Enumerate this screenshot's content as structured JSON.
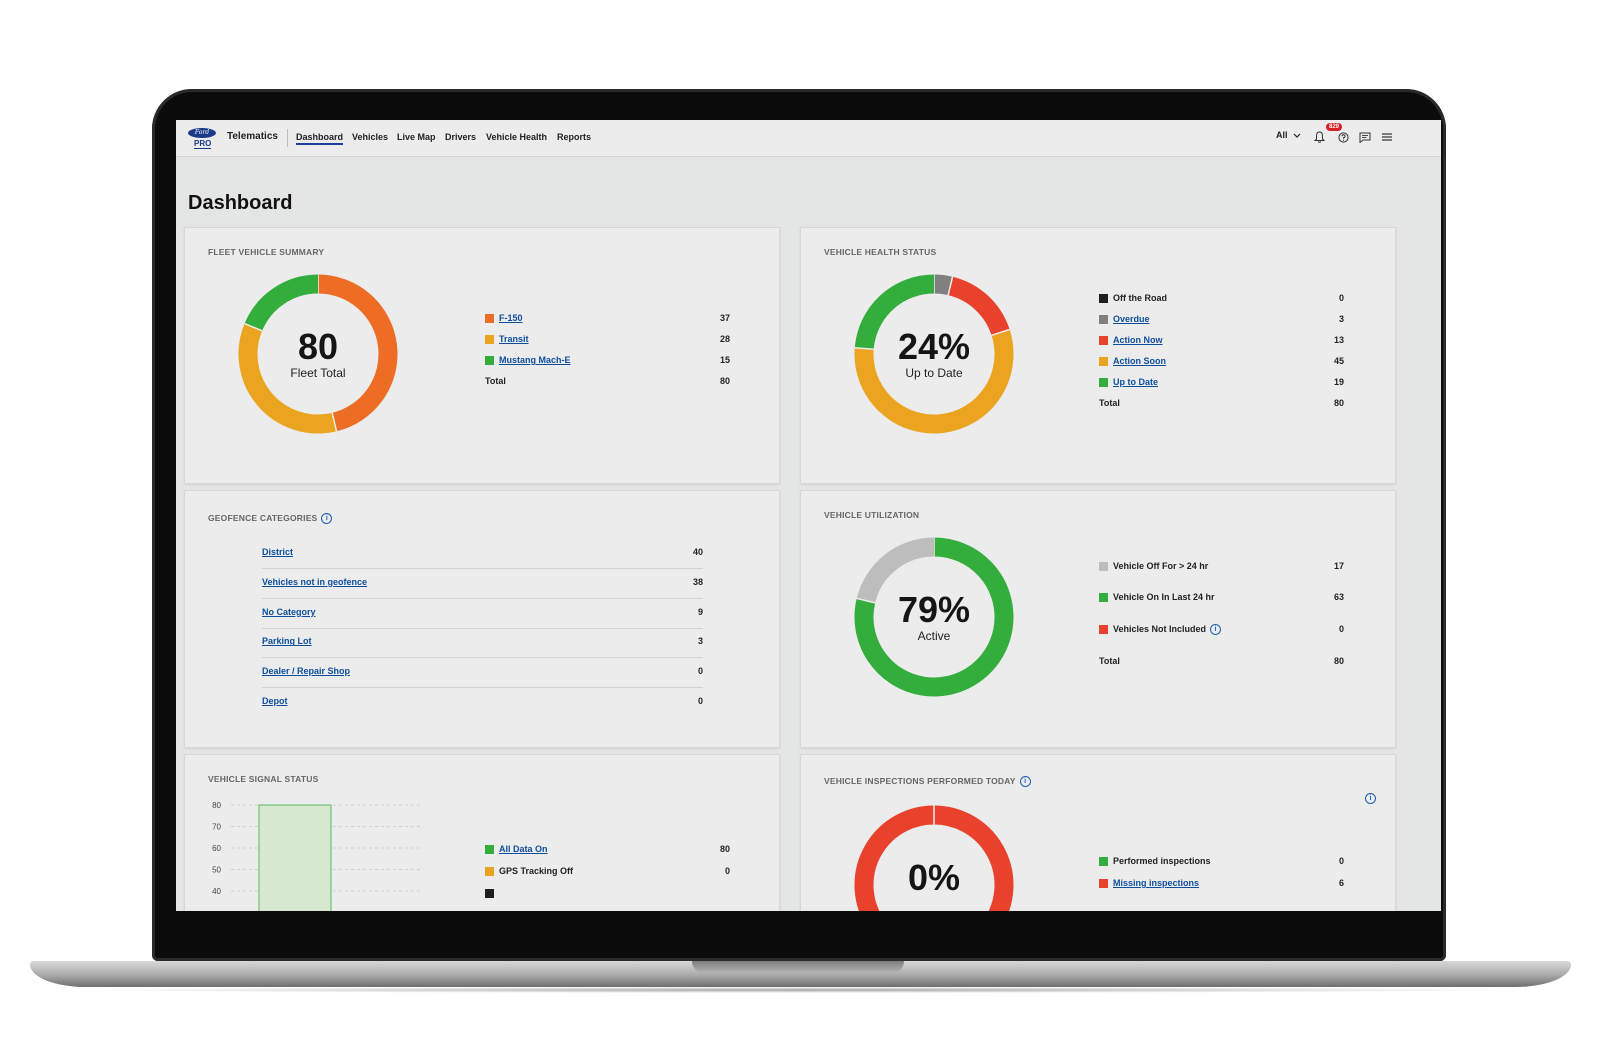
{
  "nav": {
    "app_name": "Telematics",
    "logo_oval_text": "Ford",
    "logo_pro_text": "PRO",
    "items": [
      {
        "label": "Dashboard"
      },
      {
        "label": "Vehicles"
      },
      {
        "label": "Live Map"
      },
      {
        "label": "Drivers"
      },
      {
        "label": "Vehicle Health"
      },
      {
        "label": "Reports"
      }
    ],
    "filter_label": "All",
    "notification_count": "829",
    "icons": [
      "chevron-down-icon",
      "bell-icon",
      "help-icon",
      "chat-icon",
      "menu-icon"
    ]
  },
  "page_title": "Dashboard",
  "fleet_summary": {
    "title": "FLEET VEHICLE SUMMARY",
    "center_value": "80",
    "center_label": "Fleet Total",
    "rows": [
      {
        "label": "F-150",
        "value": "37",
        "color": "#ec6d23",
        "link": true
      },
      {
        "label": "Transit",
        "value": "28",
        "color": "#eaa41f",
        "link": true
      },
      {
        "label": "Mustang Mach-E",
        "value": "15",
        "color": "#33ad3b",
        "link": true
      }
    ],
    "total_label": "Total",
    "total_value": "80"
  },
  "health_status": {
    "title": "VEHICLE HEALTH STATUS",
    "center_value": "24%",
    "center_label": "Up to Date",
    "rows": [
      {
        "label": "Off the Road",
        "value": "0",
        "color": "#1f1f1f",
        "link": false
      },
      {
        "label": "Overdue",
        "value": "3",
        "color": "#808080",
        "link": true
      },
      {
        "label": "Action Now",
        "value": "13",
        "color": "#e8412c",
        "link": true
      },
      {
        "label": "Action Soon",
        "value": "45",
        "color": "#eaa41f",
        "link": true
      },
      {
        "label": "Up to Date",
        "value": "19",
        "color": "#33ad3b",
        "link": true
      }
    ],
    "total_label": "Total",
    "total_value": "80"
  },
  "geofence": {
    "title": "GEOFENCE CATEGORIES",
    "rows": [
      {
        "label": "District",
        "value": "40"
      },
      {
        "label": "Vehicles not in geofence",
        "value": "38"
      },
      {
        "label": "No Category",
        "value": "9"
      },
      {
        "label": "Parking Lot",
        "value": "3"
      },
      {
        "label": "Dealer / Repair Shop",
        "value": "0"
      },
      {
        "label": "Depot",
        "value": "0"
      }
    ]
  },
  "utilization": {
    "title": "VEHICLE UTILIZATION",
    "center_value": "79%",
    "center_label": "Active",
    "rows": [
      {
        "label": "Vehicle Off For > 24 hr",
        "value": "17",
        "color": "#bdbdbd",
        "link": false
      },
      {
        "label": "Vehicle On In Last 24 hr",
        "value": "63",
        "color": "#33ad3b",
        "link": false
      },
      {
        "label": "Vehicles Not Included",
        "value": "0",
        "color": "#e8412c",
        "link": false
      }
    ],
    "total_label": "Total",
    "total_value": "80"
  },
  "signal_status": {
    "title": "VEHICLE SIGNAL STATUS",
    "rows": [
      {
        "label": "All Data On",
        "value": "80",
        "color": "#33ad3b",
        "link": true
      },
      {
        "label": "GPS Tracking Off",
        "value": "0",
        "color": "#eaa41f",
        "link": false
      }
    ]
  },
  "inspections": {
    "title": "VEHICLE INSPECTIONS PERFORMED TODAY",
    "center_value": "0%",
    "rows": [
      {
        "label": "Performed inspections",
        "value": "0",
        "color": "#33ad3b",
        "link": false
      },
      {
        "label": "Missing inspections",
        "value": "6",
        "color": "#e8412c",
        "link": true
      }
    ]
  },
  "chart_data": [
    {
      "type": "pie",
      "title": "FLEET VEHICLE SUMMARY",
      "categories": [
        "F-150",
        "Transit",
        "Mustang Mach-E"
      ],
      "values": [
        37,
        28,
        15
      ],
      "colors": [
        "#ec6d23",
        "#eaa41f",
        "#33ad3b"
      ]
    },
    {
      "type": "pie",
      "title": "VEHICLE HEALTH STATUS",
      "categories": [
        "Off the Road",
        "Overdue",
        "Action Now",
        "Action Soon",
        "Up to Date"
      ],
      "values": [
        0,
        3,
        13,
        45,
        19
      ],
      "colors": [
        "#1f1f1f",
        "#808080",
        "#e8412c",
        "#eaa41f",
        "#33ad3b"
      ]
    },
    {
      "type": "pie",
      "title": "VEHICLE UTILIZATION",
      "categories": [
        "Vehicle On In Last 24 hr",
        "Vehicle Off For > 24 hr",
        "Vehicles Not Included"
      ],
      "values": [
        63,
        17,
        0
      ],
      "colors": [
        "#33ad3b",
        "#bdbdbd",
        "#e8412c"
      ]
    },
    {
      "type": "bar",
      "title": "VEHICLE SIGNAL STATUS",
      "categories": [
        "All Data On"
      ],
      "values": [
        80
      ],
      "yticks": [
        80,
        70,
        60,
        50,
        40
      ],
      "ylim": [
        40,
        80
      ],
      "colors": [
        "#33ad3b"
      ]
    },
    {
      "type": "pie",
      "title": "VEHICLE INSPECTIONS PERFORMED TODAY",
      "categories": [
        "Performed inspections",
        "Missing inspections"
      ],
      "values": [
        0,
        6
      ],
      "colors": [
        "#33ad3b",
        "#e8412c"
      ]
    }
  ]
}
